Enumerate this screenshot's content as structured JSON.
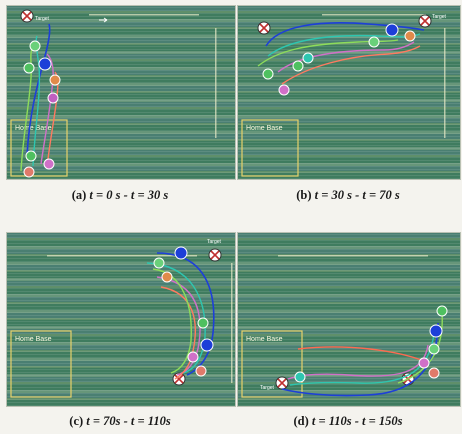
{
  "panels": [
    {
      "letter": "(a)",
      "caption": "t = 0 s - t = 30 s",
      "labels": {
        "home_base": "Home Base",
        "target": "Target"
      }
    },
    {
      "letter": "(b)",
      "caption": "t = 30 s - t = 70 s",
      "labels": {
        "home_base": "Home Base",
        "target": "Target"
      }
    },
    {
      "letter": "(c)",
      "caption": "t = 70s - t = 110s",
      "labels": {
        "home_base": "Home Base",
        "target": "Target"
      }
    },
    {
      "letter": "(d)",
      "caption": "t = 110s - t = 150s",
      "labels": {
        "home_base": "Home Base",
        "target": "Target"
      }
    }
  ]
}
